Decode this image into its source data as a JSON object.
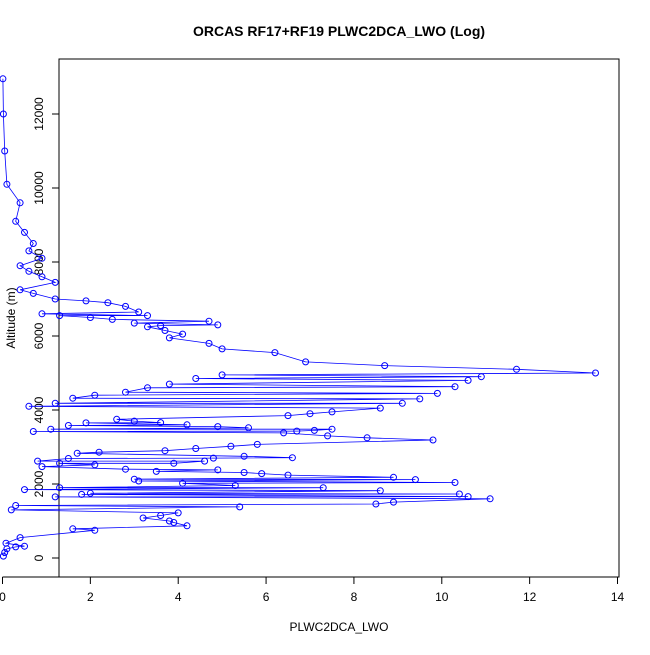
{
  "chart_data": {
    "type": "scatter",
    "title": "ORCAS RF17+RF19 PLWC2DCA_LWO (Log)",
    "xlabel": "PLWC2DCA_LWO",
    "ylabel": "Altitude (m)",
    "xlim": [
      0,
      14
    ],
    "ylim": [
      0,
      13000
    ],
    "x_ticks": [
      "0",
      "2",
      "4",
      "6",
      "8",
      "10",
      "12",
      "14"
    ],
    "y_ticks": [
      "0",
      "2000",
      "4000",
      "6000",
      "8000",
      "10000",
      "12000"
    ],
    "grid": false,
    "marker": "open-circle",
    "color": "#0000ff",
    "series": [
      {
        "points": [
          [
            0.02,
            50
          ],
          [
            0.05,
            150
          ],
          [
            0.1,
            250
          ],
          [
            0.3,
            300
          ],
          [
            0.5,
            320
          ],
          [
            0.08,
            400
          ],
          [
            0.4,
            550
          ],
          [
            2.1,
            750
          ],
          [
            1.6,
            790
          ],
          [
            4.2,
            870
          ],
          [
            3.9,
            960
          ],
          [
            3.8,
            1000
          ],
          [
            3.2,
            1080
          ],
          [
            3.6,
            1150
          ],
          [
            4.0,
            1220
          ],
          [
            5.4,
            1380
          ],
          [
            0.2,
            1300
          ],
          [
            0.3,
            1420
          ],
          [
            8.5,
            1460
          ],
          [
            8.9,
            1510
          ],
          [
            11.1,
            1600
          ],
          [
            10.6,
            1660
          ],
          [
            10.4,
            1730
          ],
          [
            1.2,
            1650
          ],
          [
            1.8,
            1720
          ],
          [
            2.0,
            1750
          ],
          [
            8.6,
            1820
          ],
          [
            7.3,
            1900
          ],
          [
            5.3,
            1960
          ],
          [
            4.1,
            2020
          ],
          [
            3.1,
            2080
          ],
          [
            3.0,
            2130
          ],
          [
            1.3,
            1900
          ],
          [
            0.5,
            1850
          ],
          [
            10.3,
            2040
          ],
          [
            8.9,
            2180
          ],
          [
            9.4,
            2120
          ],
          [
            6.5,
            2240
          ],
          [
            5.9,
            2280
          ],
          [
            5.5,
            2310
          ],
          [
            4.9,
            2380
          ],
          [
            3.5,
            2340
          ],
          [
            2.8,
            2400
          ],
          [
            0.9,
            2470
          ],
          [
            1.3,
            2560
          ],
          [
            2.1,
            2520
          ],
          [
            3.9,
            2560
          ],
          [
            4.6,
            2620
          ],
          [
            6.6,
            2710
          ],
          [
            5.5,
            2750
          ],
          [
            4.8,
            2700
          ],
          [
            1.5,
            2690
          ],
          [
            0.8,
            2620
          ],
          [
            1.7,
            2830
          ],
          [
            2.2,
            2860
          ],
          [
            3.7,
            2900
          ],
          [
            4.4,
            2960
          ],
          [
            5.2,
            3020
          ],
          [
            5.8,
            3070
          ],
          [
            8.3,
            3250
          ],
          [
            9.8,
            3190
          ],
          [
            7.4,
            3300
          ],
          [
            6.7,
            3430
          ],
          [
            6.4,
            3380
          ],
          [
            7.1,
            3450
          ],
          [
            7.5,
            3480
          ],
          [
            5.6,
            3520
          ],
          [
            4.9,
            3550
          ],
          [
            4.2,
            3600
          ],
          [
            3.6,
            3660
          ],
          [
            3.0,
            3700
          ],
          [
            2.6,
            3750
          ],
          [
            1.9,
            3650
          ],
          [
            1.5,
            3580
          ],
          [
            1.1,
            3480
          ],
          [
            0.7,
            3420
          ],
          [
            6.5,
            3850
          ],
          [
            7.0,
            3900
          ],
          [
            7.5,
            3950
          ],
          [
            8.6,
            4050
          ],
          [
            9.1,
            4180
          ],
          [
            9.5,
            4300
          ],
          [
            9.9,
            4450
          ],
          [
            10.3,
            4630
          ],
          [
            10.6,
            4800
          ],
          [
            10.9,
            4900
          ],
          [
            11.7,
            5100
          ],
          [
            13.5,
            5000
          ],
          [
            8.7,
            5200
          ],
          [
            6.9,
            5300
          ],
          [
            6.2,
            5550
          ],
          [
            5.0,
            5650
          ],
          [
            5.0,
            4950
          ],
          [
            4.4,
            4850
          ],
          [
            3.8,
            4700
          ],
          [
            3.3,
            4600
          ],
          [
            2.8,
            4480
          ],
          [
            2.1,
            4400
          ],
          [
            1.6,
            4320
          ],
          [
            1.2,
            4180
          ],
          [
            0.6,
            4100
          ],
          [
            4.7,
            5800
          ],
          [
            3.8,
            5950
          ],
          [
            4.1,
            6050
          ],
          [
            3.7,
            6150
          ],
          [
            3.3,
            6250
          ],
          [
            3.0,
            6350
          ],
          [
            2.5,
            6450
          ],
          [
            2.0,
            6500
          ],
          [
            1.3,
            6550
          ],
          [
            0.9,
            6600
          ],
          [
            3.1,
            6650
          ],
          [
            3.3,
            6550
          ],
          [
            4.7,
            6400
          ],
          [
            4.9,
            6300
          ],
          [
            3.6,
            6280
          ],
          [
            2.8,
            6800
          ],
          [
            2.4,
            6900
          ],
          [
            1.9,
            6950
          ],
          [
            1.2,
            7000
          ],
          [
            0.7,
            7150
          ],
          [
            0.4,
            7250
          ],
          [
            1.2,
            7450
          ],
          [
            0.9,
            7600
          ],
          [
            0.6,
            7750
          ],
          [
            0.4,
            7900
          ],
          [
            0.9,
            8100
          ],
          [
            0.6,
            8300
          ],
          [
            0.7,
            8500
          ],
          [
            0.5,
            8800
          ],
          [
            0.3,
            9100
          ],
          [
            0.4,
            9600
          ],
          [
            0.1,
            10100
          ],
          [
            0.05,
            11000
          ],
          [
            0.02,
            12000
          ],
          [
            0.01,
            12950
          ]
        ]
      }
    ]
  }
}
